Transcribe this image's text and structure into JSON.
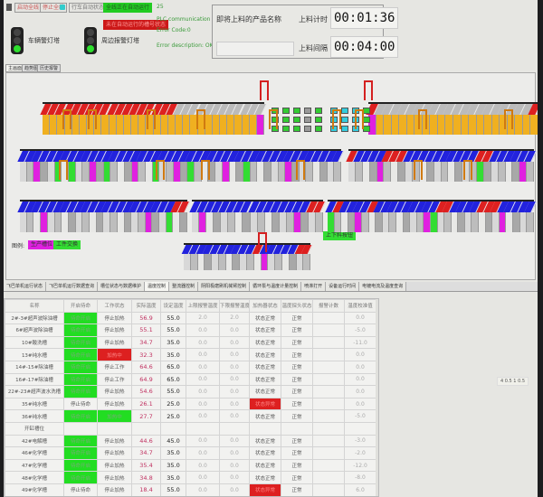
{
  "header": {
    "buttons": [
      "启动全线",
      "停止全线",
      "行车自动状态图"
    ],
    "status_running": "全线正在自动运行",
    "status_alarm": "未在自动运行的槽号状态",
    "counter": "25",
    "plc_status": "PLC communication success",
    "error_code": "Error Code:0",
    "error_description": "Error description: OK",
    "tower1_label": "车辆警灯塔",
    "tower2_label": "周边报警灯塔",
    "product_label": "即将上料的产品名称",
    "product_value": "",
    "timer_label": "上料计时",
    "timer_value": "00:01:36",
    "interval_label": "上料间隔",
    "interval_value": "00:04:00"
  },
  "top_tabs": [
    "主画面",
    "趋势图",
    "历史报警"
  ],
  "diagram": {
    "legend_title": "图例:",
    "legend": [
      {
        "label": "生产槽位",
        "color": "#e020e0"
      },
      {
        "label": "工件交换",
        "color": "#33dd33"
      }
    ],
    "green_button": "上下料按钮",
    "colors": {
      "conveyor_top": "#2222dd",
      "yellow_line": "#f0b020",
      "alarm": "#dd2020",
      "crane": "#d07a10"
    }
  },
  "bottom_tabs": [
    "飞巴单机运行状态",
    "飞巴单机运行数据查询",
    "槽位状态与数据维护",
    "温度控制",
    "整流器控制",
    "阴阳极磨刷机械臂控制",
    "循环泵与温度计量控制",
    "喷淋打开",
    "设备运行时间",
    "电镀电流及温度查询"
  ],
  "active_bottom_tab": 3,
  "table": {
    "headers": [
      "名称",
      "开启待命",
      "工作状态",
      "实际温度",
      "设定温度",
      "上限报警温度",
      "下限报警温度",
      "加热器状态",
      "温度探头状态",
      "报警计数",
      "温度校准值"
    ],
    "rows": [
      [
        "2#-3#超声波除油槽",
        "待命开启",
        "停止加热",
        "56.9",
        "55.0",
        "2.0",
        "2.0",
        "状态正常",
        "正常",
        "",
        "0.0"
      ],
      [
        "6#超声波除油槽",
        "待命开启",
        "停止加热",
        "55.1",
        "55.0",
        "0.0",
        "0.0",
        "状态正常",
        "正常",
        "",
        "-5.0"
      ],
      [
        "10#酸洗槽",
        "待命开启",
        "停止加热",
        "34.7",
        "35.0",
        "0.0",
        "0.0",
        "状态正常",
        "正常",
        "",
        "-11.0"
      ],
      [
        "13#纯水槽",
        "待命开启",
        "加热中",
        "32.3",
        "35.0",
        "0.0",
        "0.0",
        "状态正常",
        "正常",
        "",
        "0.0"
      ],
      [
        "14#-15#除油槽",
        "待命开启",
        "停止工作",
        "64.6",
        "65.0",
        "0.0",
        "0.0",
        "状态正常",
        "正常",
        "",
        "0.0"
      ],
      [
        "16#-17#除油槽",
        "待命开启",
        "停止工作",
        "64.9",
        "65.0",
        "0.0",
        "0.0",
        "状态正常",
        "正常",
        "",
        "0.0"
      ],
      [
        "22#-23#超声波水洗槽",
        "待命开启",
        "停止加热",
        "54.6",
        "55.0",
        "0.0",
        "0.0",
        "状态正常",
        "正常",
        "",
        "0.0"
      ],
      [
        "35#纯水槽",
        "停止待命",
        "停止加热",
        "26.1",
        "25.0",
        "0.0",
        "0.0",
        "状态异常",
        "正常",
        "",
        "0.0"
      ],
      [
        "36#纯水槽",
        "待命开启",
        "加热中",
        "27.7",
        "25.0",
        "0.0",
        "0.0",
        "状态正常",
        "正常",
        "",
        "-5.0"
      ],
      [
        "开缸槽位",
        "",
        "",
        "",
        "",
        "",
        "",
        "",
        "",
        "",
        ""
      ],
      [
        "42#电解槽",
        "待命开启",
        "停止加热",
        "44.6",
        "45.0",
        "0.0",
        "0.0",
        "状态正常",
        "正常",
        "",
        "-3.0"
      ],
      [
        "46#化学槽",
        "待命开启",
        "停止加热",
        "34.7",
        "35.0",
        "0.0",
        "0.0",
        "状态正常",
        "正常",
        "",
        "-2.0"
      ],
      [
        "47#化学槽",
        "待命开启",
        "停止加热",
        "35.4",
        "35.0",
        "0.0",
        "0.0",
        "状态正常",
        "正常",
        "",
        "-12.0"
      ],
      [
        "48#化学槽",
        "待命开启",
        "停止加热",
        "34.8",
        "35.0",
        "0.0",
        "0.0",
        "状态正常",
        "正常",
        "",
        "-8.0"
      ],
      [
        "49#化学槽",
        "停止待命",
        "停止加热",
        "18.4",
        "55.0",
        "0.0",
        "0.0",
        "状态异常",
        "正常",
        "",
        "6.0"
      ]
    ],
    "highlights": {
      "green": [
        "待命开启"
      ],
      "red": [
        "加热中",
        "状态异常"
      ]
    }
  },
  "readout": "4  0.5  1  0.5"
}
